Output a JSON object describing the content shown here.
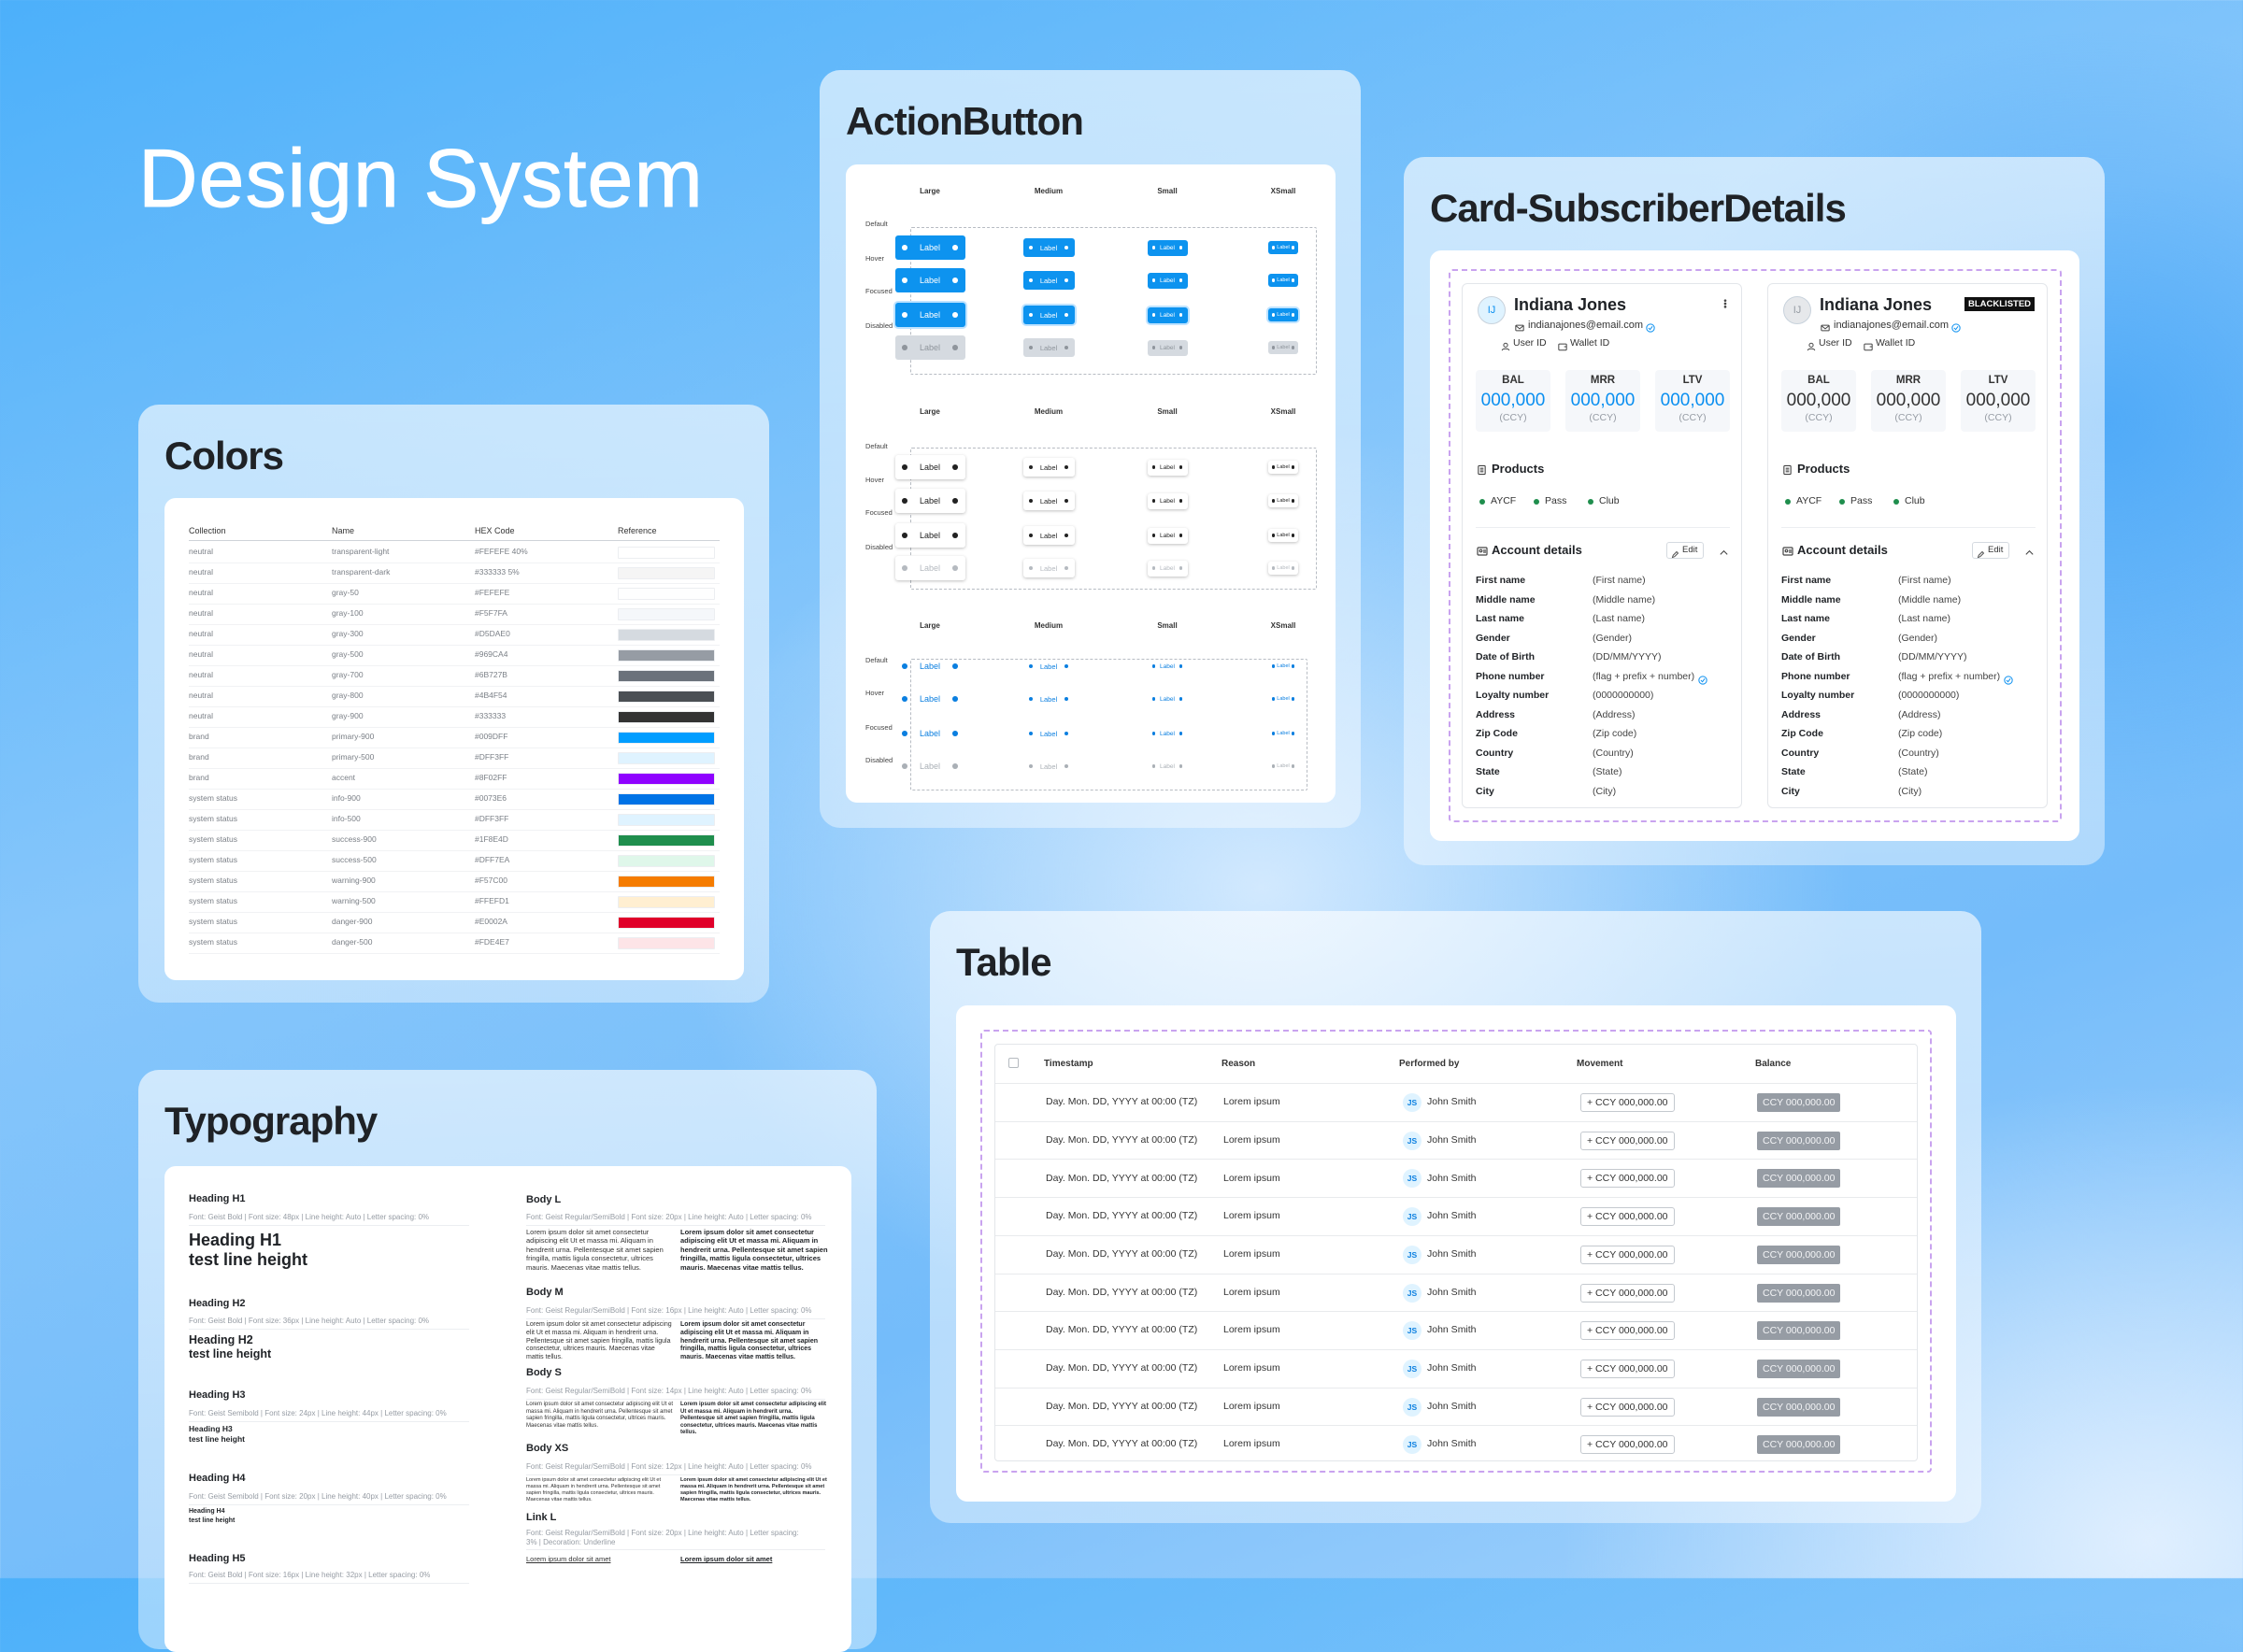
{
  "title": "Design System",
  "colors": {
    "title": "Colors",
    "columns": [
      "Collection",
      "Name",
      "HEX Code",
      "Reference"
    ],
    "rows": [
      [
        "neutral",
        "transparent-light",
        "#FEFEFE 40%"
      ],
      [
        "neutral",
        "transparent-dark",
        "#333333 5%"
      ],
      [
        "neutral",
        "gray-50",
        "#FEFEFE"
      ],
      [
        "neutral",
        "gray-100",
        "#F5F7FA"
      ],
      [
        "neutral",
        "gray-300",
        "#D5DAE0"
      ],
      [
        "neutral",
        "gray-500",
        "#969CA4"
      ],
      [
        "neutral",
        "gray-700",
        "#6B727B"
      ],
      [
        "neutral",
        "gray-800",
        "#4B4F54"
      ],
      [
        "neutral",
        "gray-900",
        "#333333"
      ],
      [
        "brand",
        "primary-900",
        "#009DFF"
      ],
      [
        "brand",
        "primary-500",
        "#DFF3FF"
      ],
      [
        "brand",
        "accent",
        "#8F02FF"
      ],
      [
        "system status",
        "info-900",
        "#0073E6"
      ],
      [
        "system status",
        "info-500",
        "#DFF3FF"
      ],
      [
        "system status",
        "success-900",
        "#1F8E4D"
      ],
      [
        "system status",
        "success-500",
        "#DFF7EA"
      ],
      [
        "system status",
        "warning-900",
        "#F57C00"
      ],
      [
        "system status",
        "warning-500",
        "#FFEFD1"
      ],
      [
        "system status",
        "danger-900",
        "#E0002A"
      ],
      [
        "system status",
        "danger-500",
        "#FDE4E7"
      ]
    ]
  },
  "action_button": {
    "title": "ActionButton",
    "sizes": [
      "Large",
      "Medium",
      "Small",
      "XSmall"
    ],
    "states": [
      "Default",
      "Hover",
      "Focused",
      "Disabled"
    ],
    "button_label": "Label"
  },
  "subscriber": {
    "title": "Card-SubscriberDetails",
    "initials": "IJ",
    "name": "Indiana Jones",
    "email": "indianajones@email.com",
    "user_id": "User ID",
    "wallet_id": "Wallet ID",
    "metrics": [
      {
        "label": "BAL",
        "value": "000,000",
        "unit": "(CCY)"
      },
      {
        "label": "MRR",
        "value": "000,000",
        "unit": "(CCY)"
      },
      {
        "label": "LTV",
        "value": "000,000",
        "unit": "(CCY)"
      }
    ],
    "products_title": "Products",
    "products": [
      "AYCF",
      "Pass",
      "Club"
    ],
    "account_title": "Account details",
    "edit": "Edit",
    "fields": [
      [
        "First name",
        "(First name)"
      ],
      [
        "Middle name",
        "(Middle name)"
      ],
      [
        "Last name",
        "(Last name)"
      ],
      [
        "Gender",
        "(Gender)"
      ],
      [
        "Date of Birth",
        "(DD/MM/YYYY)"
      ],
      [
        "Phone number",
        "(flag + prefix + number)"
      ],
      [
        "Loyalty number",
        "(0000000000)"
      ],
      [
        "Address",
        "(Address)"
      ],
      [
        "Zip Code",
        "(Zip code)"
      ],
      [
        "Country",
        "(Country)"
      ],
      [
        "State",
        "(State)"
      ],
      [
        "City",
        "(City)"
      ]
    ],
    "cards": [
      {
        "metric_color": "#0a8ff0",
        "avatar_color": "#dff3ff",
        "avatar_text": "#0a8ff0"
      },
      {
        "metric_color": "#333333",
        "avatar_color": "#e6e8eb",
        "avatar_text": "#969ca4",
        "badge": "BLACKLISTED"
      }
    ]
  },
  "table": {
    "title": "Table",
    "columns": [
      "Timestamp",
      "Reason",
      "Performed by",
      "Movement",
      "Balance"
    ],
    "rows": [
      [
        "Day. Mon. DD, YYYY at 00:00 (TZ)",
        "Lorem ipsum",
        "JS",
        "John Smith",
        "+ CCY 000,000.00",
        "CCY 000,000.00"
      ],
      [
        "Day. Mon. DD, YYYY at 00:00 (TZ)",
        "Lorem ipsum",
        "JS",
        "John Smith",
        "+ CCY 000,000.00",
        "CCY 000,000.00"
      ],
      [
        "Day. Mon. DD, YYYY at 00:00 (TZ)",
        "Lorem ipsum",
        "JS",
        "John Smith",
        "+ CCY 000,000.00",
        "CCY 000,000.00"
      ],
      [
        "Day. Mon. DD, YYYY at 00:00 (TZ)",
        "Lorem ipsum",
        "JS",
        "John Smith",
        "+ CCY 000,000.00",
        "CCY 000,000.00"
      ],
      [
        "Day. Mon. DD, YYYY at 00:00 (TZ)",
        "Lorem ipsum",
        "JS",
        "John Smith",
        "+ CCY 000,000.00",
        "CCY 000,000.00"
      ],
      [
        "Day. Mon. DD, YYYY at 00:00 (TZ)",
        "Lorem ipsum",
        "JS",
        "John Smith",
        "+ CCY 000,000.00",
        "CCY 000,000.00"
      ],
      [
        "Day. Mon. DD, YYYY at 00:00 (TZ)",
        "Lorem ipsum",
        "JS",
        "John Smith",
        "+ CCY 000,000.00",
        "CCY 000,000.00"
      ],
      [
        "Day. Mon. DD, YYYY at 00:00 (TZ)",
        "Lorem ipsum",
        "JS",
        "John Smith",
        "+ CCY 000,000.00",
        "CCY 000,000.00"
      ],
      [
        "Day. Mon. DD, YYYY at 00:00 (TZ)",
        "Lorem ipsum",
        "JS",
        "John Smith",
        "+ CCY 000,000.00",
        "CCY 000,000.00"
      ],
      [
        "Day. Mon. DD, YYYY at 00:00 (TZ)",
        "Lorem ipsum",
        "JS",
        "John Smith",
        "+ CCY 000,000.00",
        "CCY 000,000.00"
      ]
    ]
  },
  "typography": {
    "title": "Typography",
    "headings": [
      {
        "label": "Heading H1",
        "spec": "Font: Geist Bold | Font size: 48px | Line height: Auto | Letter spacing: 0%",
        "sample": [
          "Heading H1",
          "test line height"
        ]
      },
      {
        "label": "Heading H2",
        "spec": "Font: Geist Bold | Font size: 36px | Line height: Auto | Letter spacing: 0%",
        "sample": [
          "Heading H2",
          "test line height"
        ]
      },
      {
        "label": "Heading H3",
        "spec": "Font: Geist Semibold | Font size: 24px | Line height: 44px | Letter spacing: 0%",
        "sample": [
          "Heading H3",
          "test line height"
        ]
      },
      {
        "label": "Heading H4",
        "spec": "Font: Geist Semibold | Font size: 20px | Line height: 40px | Letter spacing: 0%",
        "sample": [
          "Heading H4",
          "test line height"
        ]
      },
      {
        "label": "Heading H5",
        "spec": "Font: Geist Bold | Font size: 16px | Line height: 32px | Letter spacing: 0%",
        "sample": []
      }
    ],
    "bodies": [
      {
        "label": "Body L",
        "spec": "Font: Geist Regular/SemiBold | Font size: 20px | Line height: Auto | Letter spacing: 0%"
      },
      {
        "label": "Body M",
        "spec": "Font: Geist Regular/SemiBold | Font size: 16px | Line height: Auto | Letter spacing: 0%"
      },
      {
        "label": "Body S",
        "spec": "Font: Geist Regular/SemiBold | Font size: 14px | Line height: Auto | Letter spacing: 0%"
      },
      {
        "label": "Body XS",
        "spec": "Font: Geist Regular/SemiBold | Font size: 12px | Line height: Auto | Letter spacing: 0%"
      }
    ],
    "lorem": "Lorem ipsum dolor sit amet consectetur adipiscing elit Ut et massa mi. Aliquam in hendrerit urna. Pellentesque sit amet sapien fringilla, mattis ligula consectetur, ultrices mauris. Maecenas vitae mattis tellus.",
    "link": {
      "label": "Link L",
      "spec": "Font: Geist Regular/SemiBold | Font size: 20px | Line height: Auto | Letter spacing: 3% | Decoration: Underline",
      "sample": "Lorem ipsum dolor sit amet"
    }
  }
}
